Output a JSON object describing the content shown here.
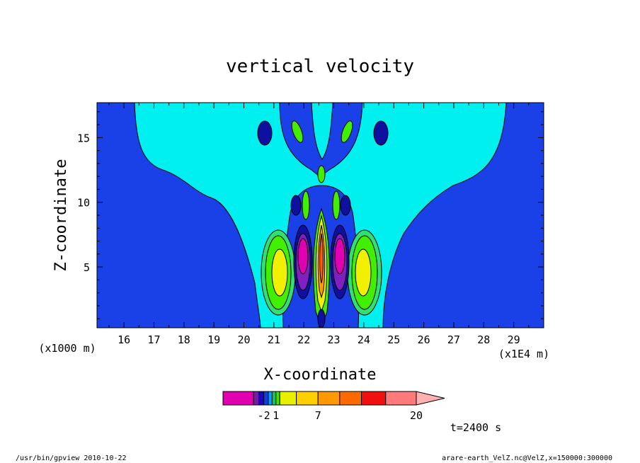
{
  "chart_data": {
    "type": "heatmap",
    "title": "vertical velocity",
    "xlabel": "X-coordinate",
    "ylabel": "Z-coordinate",
    "x_unit_label": "(x1E4 m)",
    "y_unit_label": "(x1000 m)",
    "xlim": [
      15.1,
      30.0
    ],
    "ylim": [
      0.3,
      17.7
    ],
    "x_ticks": [
      "16",
      "17",
      "18",
      "19",
      "20",
      "21",
      "22",
      "23",
      "24",
      "25",
      "26",
      "27",
      "28",
      "29"
    ],
    "y_ticks": [
      "5",
      "10",
      "15"
    ],
    "time_label": "t=2400 s",
    "colorbar": {
      "levels": [
        -5,
        -3,
        -2,
        -1,
        0,
        1,
        2,
        4,
        7,
        10,
        13,
        17,
        20
      ],
      "tick_labels": [
        "-2",
        "1",
        "7",
        "20"
      ],
      "colors": [
        "#e000b0",
        "#7a1aaa",
        "#1a00c8",
        "#0a3ff0",
        "#00a0ff",
        "#00c870",
        "#44e000",
        "#e8f000",
        "#ffd000",
        "#ff9900",
        "#ff6a00",
        "#f01010",
        "#ff7a7a",
        "#ffb0b0"
      ],
      "extend": "max"
    },
    "fill_colors": {
      "background": "#1a40e8",
      "cyan": "#00f0f0",
      "light_green": "#30e070",
      "green": "#40f000",
      "yellow": "#f0f000",
      "magenta": "#e000b0",
      "purple": "#8020c0",
      "dark_blue": "#1010a0",
      "orange": "#ff9a00",
      "red": "#ff6000"
    }
  },
  "footer": {
    "left": "/usr/bin/gpview   2010-10-22",
    "right": "arare-earth_VelZ.nc@VelZ,x=150000:300000"
  }
}
